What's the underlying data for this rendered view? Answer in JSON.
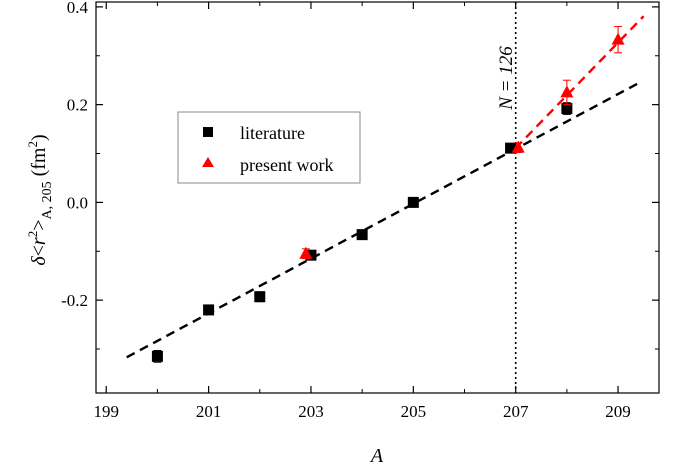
{
  "chart_data": {
    "type": "scatter",
    "title": "",
    "xlabel": "A",
    "ylabel_parts": {
      "delta": "δ",
      "open": "<",
      "r": "r",
      "sup": "2",
      "close": ">",
      "sub": "A, 205",
      "unit_open": " (fm",
      "unit_sup": "2",
      "unit_close": ")"
    },
    "xlim": [
      198.8,
      209.8
    ],
    "ylim": [
      -0.39,
      0.41
    ],
    "xticks": [
      {
        "v": 199,
        "label": "199"
      },
      {
        "v": 201,
        "label": "201"
      },
      {
        "v": 203,
        "label": "203"
      },
      {
        "v": 205,
        "label": "205"
      },
      {
        "v": 207,
        "label": "207"
      },
      {
        "v": 209,
        "label": "209"
      }
    ],
    "yticks": [
      {
        "v": -0.2,
        "label": "-0.2"
      },
      {
        "v": 0.0,
        "label": "0.0"
      },
      {
        "v": 0.2,
        "label": "0.2"
      },
      {
        "v": 0.4,
        "label": "0.4"
      }
    ],
    "grid": false,
    "legend_position": "center-left",
    "series": [
      {
        "name": "literature",
        "marker": "square",
        "color": "#000000",
        "points": [
          {
            "x": 200,
            "y": -0.315,
            "err": 0.012
          },
          {
            "x": 201,
            "y": -0.22,
            "err": 0.006
          },
          {
            "x": 202,
            "y": -0.193,
            "err": 0.01
          },
          {
            "x": 203,
            "y": -0.108,
            "err": 0.005
          },
          {
            "x": 204,
            "y": -0.066,
            "err": 0.005
          },
          {
            "x": 205,
            "y": 0.0,
            "err": 0.003
          },
          {
            "x": 206.9,
            "y": 0.111,
            "err": 0.004
          },
          {
            "x": 208,
            "y": 0.192,
            "err": 0.012
          }
        ]
      },
      {
        "name": "present work",
        "marker": "triangle",
        "color": "#ff0000",
        "points": [
          {
            "x": 202.9,
            "y": -0.105,
            "err": 0.01
          },
          {
            "x": 207.05,
            "y": 0.112,
            "err": 0.01
          },
          {
            "x": 208,
            "y": 0.225,
            "err": 0.025
          },
          {
            "x": 209,
            "y": 0.333,
            "err": 0.027
          }
        ]
      }
    ],
    "fit_lines": [
      {
        "color": "#000000",
        "x": [
          199.4,
          209.4
        ],
        "y": [
          -0.317,
          0.244
        ]
      },
      {
        "color": "#ff0000",
        "x": [
          207.0,
          209.5
        ],
        "y": [
          0.111,
          0.381
        ]
      }
    ],
    "vertical_line": {
      "x": 207,
      "label": "N = 126",
      "color": "#000000"
    }
  }
}
